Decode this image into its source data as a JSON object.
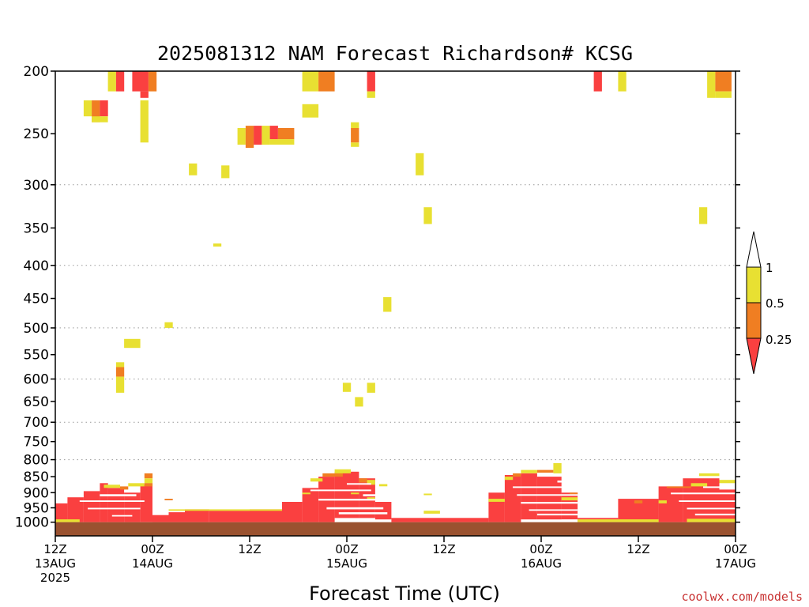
{
  "chart_data": {
    "type": "heatmap",
    "title": "2025081312 NAM Forecast Richardson# KCSG",
    "xlabel": "Forecast Time (UTC)",
    "credit": "coolwx.com/models",
    "y_axis": {
      "scale": "log",
      "range_hpa": [
        200,
        1050
      ],
      "ticks": [
        200,
        250,
        300,
        350,
        400,
        450,
        500,
        550,
        600,
        650,
        700,
        750,
        800,
        850,
        900,
        950,
        1000
      ],
      "gridlines": [
        300,
        400,
        500,
        600,
        700,
        800
      ]
    },
    "x_axis": {
      "range_hours": [
        0,
        84
      ],
      "ticks": [
        {
          "hour": 0,
          "lines": [
            "12Z",
            "13AUG",
            "2025"
          ]
        },
        {
          "hour": 12,
          "lines": [
            "00Z",
            "14AUG"
          ]
        },
        {
          "hour": 24,
          "lines": [
            "12Z"
          ]
        },
        {
          "hour": 36,
          "lines": [
            "00Z",
            "15AUG"
          ]
        },
        {
          "hour": 48,
          "lines": [
            "12Z"
          ]
        },
        {
          "hour": 60,
          "lines": [
            "00Z",
            "16AUG"
          ]
        },
        {
          "hour": 72,
          "lines": [
            "12Z"
          ]
        },
        {
          "hour": 84,
          "lines": [
            "00Z",
            "17AUG"
          ]
        }
      ]
    },
    "colorbar": {
      "labels": [
        "1",
        "0.5",
        "0.25"
      ],
      "colors": {
        "high": "#e8e032",
        "mid": "#f07e22",
        "low": "#fa4040",
        "above": "#ffffff"
      }
    },
    "ground_color": "#9a5230",
    "cells": [
      {
        "t0": 6.5,
        "t1": 7.5,
        "p0": 200,
        "p1": 215,
        "c": "high"
      },
      {
        "t0": 7.5,
        "t1": 8.5,
        "p0": 200,
        "p1": 215,
        "c": "low"
      },
      {
        "t0": 9.5,
        "t1": 11.5,
        "p0": 200,
        "p1": 215,
        "c": "low"
      },
      {
        "t0": 11.5,
        "t1": 12.5,
        "p0": 200,
        "p1": 215,
        "c": "mid"
      },
      {
        "t0": 10.5,
        "t1": 11.5,
        "p0": 215,
        "p1": 220,
        "c": "low"
      },
      {
        "t0": 3.5,
        "t1": 4.5,
        "p0": 222,
        "p1": 235,
        "c": "high"
      },
      {
        "t0": 4.5,
        "t1": 5.5,
        "p0": 222,
        "p1": 240,
        "c": "mid"
      },
      {
        "t0": 5.5,
        "t1": 6.5,
        "p0": 222,
        "p1": 235,
        "c": "low"
      },
      {
        "t0": 4.5,
        "t1": 6.5,
        "p0": 235,
        "p1": 240,
        "c": "high"
      },
      {
        "t0": 10.5,
        "t1": 11.5,
        "p0": 222,
        "p1": 258,
        "c": "high"
      },
      {
        "t0": 16.5,
        "t1": 17.5,
        "p0": 278,
        "p1": 290,
        "c": "high"
      },
      {
        "t0": 20.5,
        "t1": 21.5,
        "p0": 280,
        "p1": 293,
        "c": "high"
      },
      {
        "t0": 22.5,
        "t1": 23.5,
        "p0": 245,
        "p1": 260,
        "c": "high"
      },
      {
        "t0": 23.5,
        "t1": 24.5,
        "p0": 243,
        "p1": 263,
        "c": "mid"
      },
      {
        "t0": 24.5,
        "t1": 25.5,
        "p0": 243,
        "p1": 260,
        "c": "low"
      },
      {
        "t0": 25.5,
        "t1": 26.5,
        "p0": 243,
        "p1": 260,
        "c": "high"
      },
      {
        "t0": 26.5,
        "t1": 27.5,
        "p0": 243,
        "p1": 255,
        "c": "low"
      },
      {
        "t0": 27.5,
        "t1": 29.5,
        "p0": 245,
        "p1": 255,
        "c": "mid"
      },
      {
        "t0": 26.5,
        "t1": 29.5,
        "p0": 255,
        "p1": 260,
        "c": "high"
      },
      {
        "t0": 30.5,
        "t1": 32.5,
        "p0": 200,
        "p1": 215,
        "c": "high"
      },
      {
        "t0": 32.5,
        "t1": 34.5,
        "p0": 200,
        "p1": 215,
        "c": "mid"
      },
      {
        "t0": 30.5,
        "t1": 32.5,
        "p0": 225,
        "p1": 236,
        "c": "high"
      },
      {
        "t0": 36.5,
        "t1": 37.5,
        "p0": 240,
        "p1": 245,
        "c": "high"
      },
      {
        "t0": 36.5,
        "t1": 37.5,
        "p0": 245,
        "p1": 258,
        "c": "mid"
      },
      {
        "t0": 36.5,
        "t1": 37.5,
        "p0": 258,
        "p1": 262,
        "c": "high"
      },
      {
        "t0": 38.5,
        "t1": 39.5,
        "p0": 200,
        "p1": 215,
        "c": "low"
      },
      {
        "t0": 38.5,
        "t1": 39.5,
        "p0": 215,
        "p1": 220,
        "c": "high"
      },
      {
        "t0": 44.5,
        "t1": 45.5,
        "p0": 268,
        "p1": 290,
        "c": "high"
      },
      {
        "t0": 45.5,
        "t1": 46.5,
        "p0": 325,
        "p1": 345,
        "c": "high"
      },
      {
        "t0": 66.5,
        "t1": 67.5,
        "p0": 200,
        "p1": 215,
        "c": "low"
      },
      {
        "t0": 69.5,
        "t1": 70.5,
        "p0": 200,
        "p1": 215,
        "c": "high"
      },
      {
        "t0": 80.5,
        "t1": 81.5,
        "p0": 200,
        "p1": 220,
        "c": "high"
      },
      {
        "t0": 81.5,
        "t1": 83.5,
        "p0": 200,
        "p1": 215,
        "c": "mid"
      },
      {
        "t0": 81.5,
        "t1": 83.5,
        "p0": 215,
        "p1": 220,
        "c": "high"
      },
      {
        "t0": 79.5,
        "t1": 80.5,
        "p0": 325,
        "p1": 345,
        "c": "high"
      },
      {
        "t0": 19.5,
        "t1": 20.5,
        "p0": 370,
        "p1": 374,
        "c": "high"
      },
      {
        "t0": 40.5,
        "t1": 41.5,
        "p0": 448,
        "p1": 472,
        "c": "high"
      },
      {
        "t0": 13.5,
        "t1": 14.5,
        "p0": 490,
        "p1": 500,
        "c": "high"
      },
      {
        "t0": 8.5,
        "t1": 10.5,
        "p0": 520,
        "p1": 537,
        "c": "high"
      },
      {
        "t0": 7.5,
        "t1": 8.5,
        "p0": 565,
        "p1": 575,
        "c": "high"
      },
      {
        "t0": 7.5,
        "t1": 8.5,
        "p0": 575,
        "p1": 595,
        "c": "mid"
      },
      {
        "t0": 7.5,
        "t1": 8.5,
        "p0": 595,
        "p1": 630,
        "c": "high"
      },
      {
        "t0": 35.5,
        "t1": 36.5,
        "p0": 608,
        "p1": 628,
        "c": "high"
      },
      {
        "t0": 37.0,
        "t1": 38.0,
        "p0": 640,
        "p1": 662,
        "c": "high"
      },
      {
        "t0": 38.5,
        "t1": 39.5,
        "p0": 608,
        "p1": 630,
        "c": "high"
      },
      {
        "t0": 11.0,
        "t1": 12.0,
        "p0": 840,
        "p1": 855,
        "c": "mid"
      },
      {
        "t0": 11.0,
        "t1": 12.0,
        "p0": 855,
        "p1": 870,
        "c": "high"
      },
      {
        "t0": 0.0,
        "t1": 1.5,
        "p0": 935,
        "p1": 1000,
        "c": "low"
      },
      {
        "t0": 1.5,
        "t1": 3.5,
        "p0": 915,
        "p1": 1000,
        "c": "low"
      },
      {
        "t0": 3.5,
        "t1": 5.5,
        "p0": 895,
        "p1": 1000,
        "c": "low"
      },
      {
        "t0": 5.5,
        "t1": 6.5,
        "p0": 870,
        "p1": 1000,
        "c": "low"
      },
      {
        "t0": 6.5,
        "t1": 8.5,
        "p0": 885,
        "p1": 1000,
        "c": "low"
      },
      {
        "t0": 8.5,
        "t1": 10.5,
        "p0": 900,
        "p1": 1000,
        "c": "low"
      },
      {
        "t0": 10.5,
        "t1": 12.0,
        "p0": 875,
        "p1": 1000,
        "c": "low"
      },
      {
        "t0": 12.0,
        "t1": 14.0,
        "p0": 975,
        "p1": 1000,
        "c": "low"
      },
      {
        "t0": 14.0,
        "t1": 16.0,
        "p0": 965,
        "p1": 1000,
        "c": "low"
      },
      {
        "t0": 16.0,
        "t1": 19.0,
        "p0": 955,
        "p1": 1000,
        "c": "low"
      },
      {
        "t0": 19.0,
        "t1": 24.0,
        "p0": 960,
        "p1": 1000,
        "c": "low"
      },
      {
        "t0": 24.0,
        "t1": 28.0,
        "p0": 955,
        "p1": 1000,
        "c": "low"
      },
      {
        "t0": 28.0,
        "t1": 30.5,
        "p0": 930,
        "p1": 1000,
        "c": "low"
      },
      {
        "t0": 30.5,
        "t1": 32.5,
        "p0": 885,
        "p1": 1000,
        "c": "low"
      },
      {
        "t0": 32.5,
        "t1": 34.5,
        "p0": 850,
        "p1": 1000,
        "c": "low"
      },
      {
        "t0": 34.5,
        "t1": 37.5,
        "p0": 835,
        "p1": 985,
        "c": "low"
      },
      {
        "t0": 37.5,
        "t1": 39.5,
        "p0": 855,
        "p1": 985,
        "c": "low"
      },
      {
        "t0": 39.5,
        "t1": 41.5,
        "p0": 930,
        "p1": 990,
        "c": "low"
      },
      {
        "t0": 41.5,
        "t1": 53.5,
        "p0": 985,
        "p1": 1000,
        "c": "low"
      },
      {
        "t0": 53.5,
        "t1": 55.5,
        "p0": 900,
        "p1": 1000,
        "c": "low"
      },
      {
        "t0": 55.5,
        "t1": 57.5,
        "p0": 845,
        "p1": 1000,
        "c": "low"
      },
      {
        "t0": 57.5,
        "t1": 59.5,
        "p0": 840,
        "p1": 990,
        "c": "low"
      },
      {
        "t0": 59.5,
        "t1": 62.5,
        "p0": 850,
        "p1": 990,
        "c": "low"
      },
      {
        "t0": 62.5,
        "t1": 64.5,
        "p0": 900,
        "p1": 990,
        "c": "low"
      },
      {
        "t0": 64.5,
        "t1": 69.5,
        "p0": 985,
        "p1": 1000,
        "c": "low"
      },
      {
        "t0": 69.5,
        "t1": 74.5,
        "p0": 920,
        "p1": 1000,
        "c": "low"
      },
      {
        "t0": 74.5,
        "t1": 77.5,
        "p0": 880,
        "p1": 1000,
        "c": "low"
      },
      {
        "t0": 77.5,
        "t1": 82.0,
        "p0": 855,
        "p1": 1000,
        "c": "low"
      },
      {
        "t0": 82.0,
        "t1": 84.0,
        "p0": 890,
        "p1": 1000,
        "c": "low"
      },
      {
        "t0": 0.0,
        "t1": 3.0,
        "p0": 990,
        "p1": 1000,
        "c": "high"
      },
      {
        "t0": 6.0,
        "t1": 8.0,
        "p0": 875,
        "p1": 885,
        "c": "high"
      },
      {
        "t0": 8.0,
        "t1": 9.0,
        "p0": 880,
        "p1": 890,
        "c": "mid"
      },
      {
        "t0": 9.0,
        "t1": 11.0,
        "p0": 870,
        "p1": 880,
        "c": "high"
      },
      {
        "t0": 11.0,
        "t1": 12.0,
        "p0": 870,
        "p1": 880,
        "c": "mid"
      },
      {
        "t0": 13.5,
        "t1": 14.5,
        "p0": 920,
        "p1": 925,
        "c": "mid"
      },
      {
        "t0": 14.0,
        "t1": 28.0,
        "p0": 955,
        "p1": 960,
        "c": "high"
      },
      {
        "t0": 30.5,
        "t1": 31.5,
        "p0": 900,
        "p1": 905,
        "c": "high"
      },
      {
        "t0": 31.5,
        "t1": 33.0,
        "p0": 855,
        "p1": 865,
        "c": "high"
      },
      {
        "t0": 33.0,
        "t1": 35.5,
        "p0": 840,
        "p1": 850,
        "c": "mid"
      },
      {
        "t0": 34.5,
        "t1": 36.5,
        "p0": 828,
        "p1": 840,
        "c": "high"
      },
      {
        "t0": 37.5,
        "t1": 38.5,
        "p0": 855,
        "p1": 868,
        "c": "mid"
      },
      {
        "t0": 38.5,
        "t1": 39.5,
        "p0": 860,
        "p1": 875,
        "c": "high"
      },
      {
        "t0": 40.0,
        "t1": 41.0,
        "p0": 873,
        "p1": 880,
        "c": "high"
      },
      {
        "t0": 36.5,
        "t1": 37.5,
        "p0": 900,
        "p1": 905,
        "c": "high"
      },
      {
        "t0": 38.5,
        "t1": 39.5,
        "p0": 915,
        "p1": 920,
        "c": "high"
      },
      {
        "t0": 45.5,
        "t1": 46.5,
        "p0": 903,
        "p1": 908,
        "c": "high"
      },
      {
        "t0": 45.5,
        "t1": 47.5,
        "p0": 960,
        "p1": 970,
        "c": "high"
      },
      {
        "t0": 53.5,
        "t1": 55.5,
        "p0": 920,
        "p1": 930,
        "c": "high"
      },
      {
        "t0": 55.5,
        "t1": 56.5,
        "p0": 850,
        "p1": 860,
        "c": "high"
      },
      {
        "t0": 56.5,
        "t1": 57.5,
        "p0": 840,
        "p1": 850,
        "c": "mid"
      },
      {
        "t0": 57.5,
        "t1": 59.5,
        "p0": 830,
        "p1": 840,
        "c": "high"
      },
      {
        "t0": 59.5,
        "t1": 61.5,
        "p0": 830,
        "p1": 838,
        "c": "mid"
      },
      {
        "t0": 61.5,
        "t1": 62.5,
        "p0": 810,
        "p1": 840,
        "c": "high"
      },
      {
        "t0": 62.5,
        "t1": 64.5,
        "p0": 915,
        "p1": 925,
        "c": "high"
      },
      {
        "t0": 63.5,
        "t1": 64.5,
        "p0": 900,
        "p1": 905,
        "c": "mid"
      },
      {
        "t0": 64.5,
        "t1": 74.5,
        "p0": 990,
        "p1": 1000,
        "c": "high"
      },
      {
        "t0": 71.5,
        "t1": 72.5,
        "p0": 925,
        "p1": 935,
        "c": "mid"
      },
      {
        "t0": 74.5,
        "t1": 75.5,
        "p0": 925,
        "p1": 935,
        "c": "high"
      },
      {
        "t0": 75.5,
        "t1": 78.5,
        "p0": 880,
        "p1": 885,
        "c": "mid"
      },
      {
        "t0": 78.5,
        "t1": 80.5,
        "p0": 870,
        "p1": 880,
        "c": "high"
      },
      {
        "t0": 79.5,
        "t1": 82.0,
        "p0": 840,
        "p1": 848,
        "c": "high"
      },
      {
        "t0": 82.0,
        "t1": 84.0,
        "p0": 860,
        "p1": 870,
        "c": "high"
      },
      {
        "t0": 78.0,
        "t1": 84.0,
        "p0": 988,
        "p1": 1000,
        "c": "high"
      }
    ],
    "gaps": [
      {
        "t0": 3.0,
        "t1": 11.0,
        "p0": 925,
        "p1": 930
      },
      {
        "t0": 4.0,
        "t1": 10.5,
        "p0": 950,
        "p1": 955
      },
      {
        "t0": 5.5,
        "t1": 10.0,
        "p0": 905,
        "p1": 912
      },
      {
        "t0": 7.0,
        "t1": 9.5,
        "p0": 975,
        "p1": 980
      },
      {
        "t0": 31.5,
        "t1": 39.0,
        "p0": 890,
        "p1": 895
      },
      {
        "t0": 32.5,
        "t1": 40.0,
        "p0": 920,
        "p1": 926
      },
      {
        "t0": 33.5,
        "t1": 40.5,
        "p0": 948,
        "p1": 955
      },
      {
        "t0": 35.0,
        "t1": 41.0,
        "p0": 965,
        "p1": 972
      },
      {
        "t0": 36.0,
        "t1": 39.0,
        "p0": 870,
        "p1": 875
      },
      {
        "t0": 38.0,
        "t1": 41.0,
        "p0": 905,
        "p1": 912
      },
      {
        "t0": 56.5,
        "t1": 64.0,
        "p0": 880,
        "p1": 885
      },
      {
        "t0": 57.0,
        "t1": 64.5,
        "p0": 905,
        "p1": 910
      },
      {
        "t0": 57.5,
        "t1": 64.5,
        "p0": 930,
        "p1": 936
      },
      {
        "t0": 58.5,
        "t1": 64.5,
        "p0": 955,
        "p1": 960
      },
      {
        "t0": 59.5,
        "t1": 64.5,
        "p0": 970,
        "p1": 976
      },
      {
        "t0": 62.0,
        "t1": 63.5,
        "p0": 862,
        "p1": 868
      },
      {
        "t0": 76.0,
        "t1": 84.0,
        "p0": 900,
        "p1": 905
      },
      {
        "t0": 77.0,
        "t1": 84.0,
        "p0": 925,
        "p1": 930
      },
      {
        "t0": 78.0,
        "t1": 84.0,
        "p0": 950,
        "p1": 955
      },
      {
        "t0": 79.0,
        "t1": 84.0,
        "p0": 970,
        "p1": 976
      },
      {
        "t0": 80.0,
        "t1": 83.0,
        "p0": 880,
        "p1": 885
      }
    ]
  }
}
